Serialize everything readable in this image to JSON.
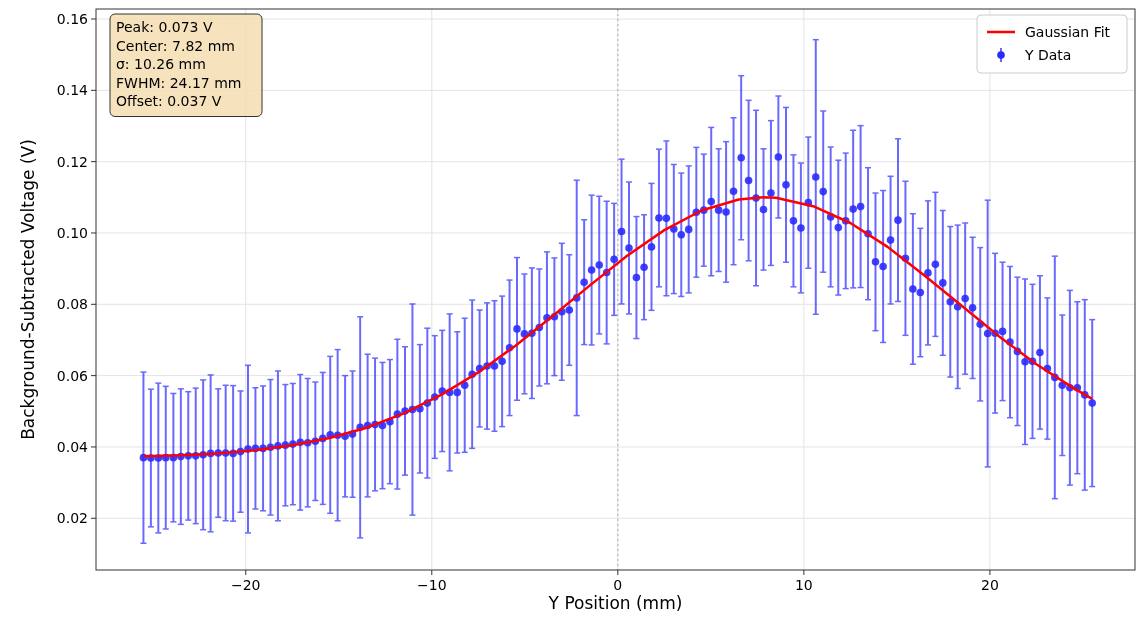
{
  "chart_data": {
    "type": "scatter",
    "xlabel": "Y Position (mm)",
    "ylabel": "Background-Subtracted Voltage (V)",
    "xlim": [
      -28.05,
      27.8
    ],
    "ylim": [
      0.0055,
      0.1628
    ],
    "xticks": [
      -20,
      -10,
      0,
      10,
      20
    ],
    "yticks": [
      {
        "value": 0.02,
        "label": "0.02"
      },
      {
        "value": 0.04,
        "label": "0.04"
      },
      {
        "value": 0.06,
        "label": "0.06"
      },
      {
        "value": 0.08,
        "label": "0.08"
      },
      {
        "value": 0.1,
        "label": "0.10"
      },
      {
        "value": 0.12,
        "label": "0.12"
      },
      {
        "value": 0.14,
        "label": "0.14"
      },
      {
        "value": 0.16,
        "label": "0.16"
      }
    ],
    "grid": true,
    "legend": "top right",
    "marker": "circle",
    "annotations": [
      "Peak: 0.073 V",
      "Center: 7.82 mm",
      "σ: 10.26 mm",
      "FWHM: 24.17 mm",
      "Offset: 0.037 V"
    ],
    "ref_lines": [
      {
        "axis": "x",
        "value": 0,
        "color": "#aaaaaa",
        "line_style": "dotted"
      }
    ],
    "series": [
      {
        "type": "line",
        "name": "Gaussian Fit",
        "color": "#ff0000",
        "line_style": "solid",
        "marker": "none",
        "x": [
          -25.5,
          -23.5,
          -21.5,
          -19.5,
          -17.5,
          -15.5,
          -13.5,
          -11.5,
          -9.5,
          -7.5,
          -5.5,
          -3.5,
          -1.5,
          0.5,
          2.5,
          4.5,
          6.5,
          7.82,
          8.5,
          10.5,
          12.5,
          14.5,
          16.5,
          18.5,
          20.5,
          22.5,
          24.5,
          25.5
        ],
        "values": [
          0.0374,
          0.0377,
          0.0382,
          0.0391,
          0.0405,
          0.0425,
          0.0454,
          0.0494,
          0.0546,
          0.0609,
          0.0684,
          0.0767,
          0.0853,
          0.0936,
          0.1008,
          0.1063,
          0.1094,
          0.11,
          0.1099,
          0.1075,
          0.1028,
          0.0961,
          0.088,
          0.0795,
          0.071,
          0.0632,
          0.0565,
          0.0535
        ]
      },
      {
        "type": "scatter",
        "name": "Y Data",
        "color": "#2b2bff",
        "x": [
          -25.5,
          -25.1,
          -24.7,
          -24.3,
          -23.89,
          -23.49,
          -23.09,
          -22.69,
          -22.29,
          -21.89,
          -21.48,
          -21.08,
          -20.68,
          -20.28,
          -19.88,
          -19.48,
          -19.07,
          -18.67,
          -18.27,
          -17.87,
          -17.47,
          -17.07,
          -16.67,
          -16.26,
          -15.86,
          -15.46,
          -15.06,
          -14.66,
          -14.26,
          -13.85,
          -13.45,
          -13.05,
          -12.65,
          -12.25,
          -11.85,
          -11.44,
          -11.04,
          -10.64,
          -10.24,
          -9.84,
          -9.44,
          -9.04,
          -8.63,
          -8.23,
          -7.83,
          -7.43,
          -7.03,
          -6.63,
          -6.22,
          -5.82,
          -5.42,
          -5.02,
          -4.62,
          -4.22,
          -3.81,
          -3.41,
          -3.01,
          -2.61,
          -2.21,
          -1.81,
          -1.41,
          -1.0,
          -0.6,
          -0.2,
          0.2,
          0.6,
          1.0,
          1.41,
          1.81,
          2.21,
          2.61,
          3.01,
          3.41,
          3.81,
          4.22,
          4.62,
          5.02,
          5.42,
          5.82,
          6.22,
          6.63,
          7.03,
          7.43,
          7.83,
          8.23,
          8.63,
          9.04,
          9.44,
          9.84,
          10.24,
          10.64,
          11.04,
          11.44,
          11.85,
          12.25,
          12.65,
          13.05,
          13.45,
          13.85,
          14.26,
          14.66,
          15.06,
          15.46,
          15.86,
          16.26,
          16.67,
          17.07,
          17.47,
          17.87,
          18.27,
          18.67,
          19.07,
          19.48,
          19.88,
          20.28,
          20.68,
          21.08,
          21.48,
          21.89,
          22.29,
          22.69,
          23.09,
          23.49,
          23.89,
          24.3,
          24.7,
          25.1,
          25.5
        ],
        "values": [
          0.037,
          0.0369,
          0.0369,
          0.037,
          0.037,
          0.0373,
          0.0375,
          0.0375,
          0.0378,
          0.0382,
          0.0383,
          0.0383,
          0.0382,
          0.0387,
          0.0394,
          0.0396,
          0.0396,
          0.0399,
          0.0403,
          0.0405,
          0.0408,
          0.0413,
          0.0412,
          0.0416,
          0.0424,
          0.0434,
          0.0433,
          0.043,
          0.0436,
          0.0455,
          0.046,
          0.0463,
          0.046,
          0.0471,
          0.0492,
          0.0501,
          0.0505,
          0.0507,
          0.0523,
          0.054,
          0.0557,
          0.0553,
          0.0553,
          0.0573,
          0.0604,
          0.062,
          0.0627,
          0.0627,
          0.064,
          0.0678,
          0.0731,
          0.0717,
          0.0719,
          0.0735,
          0.0762,
          0.0765,
          0.0779,
          0.0784,
          0.0818,
          0.0862,
          0.0896,
          0.091,
          0.0889,
          0.0926,
          0.1004,
          0.0958,
          0.0875,
          0.0904,
          0.0961,
          0.1042,
          0.1041,
          0.1011,
          0.0995,
          0.101,
          0.1058,
          0.1064,
          0.1088,
          0.1064,
          0.1059,
          0.1117,
          0.1211,
          0.1147,
          0.1098,
          0.1066,
          0.1112,
          0.1213,
          0.1135,
          0.1034,
          0.1014,
          0.1085,
          0.1157,
          0.1116,
          0.1045,
          0.1015,
          0.1034,
          0.1067,
          0.1074,
          0.0998,
          0.0919,
          0.0906,
          0.098,
          0.1036,
          0.0929,
          0.0843,
          0.0833,
          0.0888,
          0.0912,
          0.086,
          0.0807,
          0.0793,
          0.0816,
          0.079,
          0.0744,
          0.0718,
          0.0719,
          0.0724,
          0.0694,
          0.0668,
          0.0639,
          0.064,
          0.0665,
          0.062,
          0.0595,
          0.0573,
          0.0566,
          0.0566,
          0.0546,
          0.0523
        ],
        "errors": [
          0.024,
          0.0193,
          0.021,
          0.02,
          0.018,
          0.019,
          0.018,
          0.019,
          0.021,
          0.022,
          0.018,
          0.019,
          0.019,
          0.017,
          0.0235,
          0.017,
          0.0175,
          0.019,
          0.021,
          0.017,
          0.017,
          0.019,
          0.018,
          0.0166,
          0.0185,
          0.022,
          0.024,
          0.017,
          0.0177,
          0.031,
          0.02,
          0.0186,
          0.0177,
          0.0174,
          0.021,
          0.018,
          0.0296,
          0.018,
          0.021,
          0.0172,
          0.017,
          0.022,
          0.017,
          0.0188,
          0.0208,
          0.0164,
          0.0177,
          0.0183,
          0.0183,
          0.019,
          0.02,
          0.0168,
          0.0183,
          0.0164,
          0.0185,
          0.0165,
          0.0192,
          0.0155,
          0.033,
          0.0175,
          0.021,
          0.0193,
          0.02,
          0.0157,
          0.0203,
          0.0185,
          0.0171,
          0.0147,
          0.0178,
          0.0193,
          0.0217,
          0.0181,
          0.0173,
          0.0178,
          0.0182,
          0.0157,
          0.0208,
          0.0172,
          0.0197,
          0.0206,
          0.023,
          0.0225,
          0.0246,
          0.017,
          0.0203,
          0.0171,
          0.0217,
          0.0185,
          0.0182,
          0.0184,
          0.0385,
          0.0226,
          0.0196,
          0.0189,
          0.019,
          0.0221,
          0.0227,
          0.0185,
          0.0193,
          0.0213,
          0.0179,
          0.0228,
          0.0216,
          0.0211,
          0.018,
          0.0202,
          0.0202,
          0.0203,
          0.0211,
          0.0229,
          0.0212,
          0.0198,
          0.0215,
          0.0374,
          0.0224,
          0.0194,
          0.0212,
          0.0208,
          0.0232,
          0.0216,
          0.0215,
          0.0198,
          0.034,
          0.0197,
          0.0273,
          0.0241,
          0.0267,
          0.0234
        ]
      }
    ]
  }
}
